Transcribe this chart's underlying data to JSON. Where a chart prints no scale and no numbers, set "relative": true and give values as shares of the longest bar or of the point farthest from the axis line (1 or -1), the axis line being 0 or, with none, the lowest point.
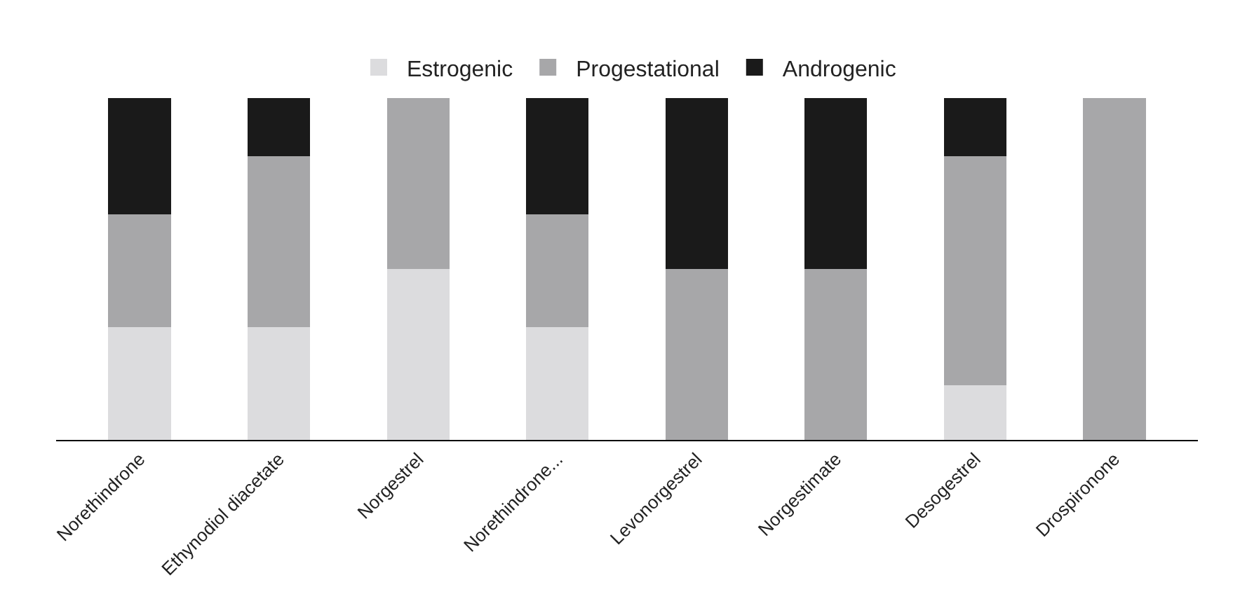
{
  "chart_data": {
    "type": "bar",
    "stacked": true,
    "relative": true,
    "legend": "top",
    "categories": [
      "Norethindrone",
      "Ethynodiol diacetate",
      "Norgestrel",
      "Norethindrone...",
      "Levonorgestrel",
      "Norgestimate",
      "Desogestrel",
      "Drospironone"
    ],
    "series": [
      {
        "name": "Estrogenic",
        "color": "#dcdcde",
        "values": [
          0.33,
          0.33,
          0.5,
          0.33,
          0,
          0,
          0.16,
          0
        ]
      },
      {
        "name": "Progestational",
        "color": "#a7a7a9",
        "values": [
          0.33,
          0.5,
          0.5,
          0.33,
          0.5,
          0.5,
          0.67,
          1
        ]
      },
      {
        "name": "Androgenic",
        "color": "#1a1a1a",
        "values": [
          0.34,
          0.17,
          0,
          0.34,
          0.5,
          0.5,
          0.17,
          0
        ]
      }
    ]
  }
}
